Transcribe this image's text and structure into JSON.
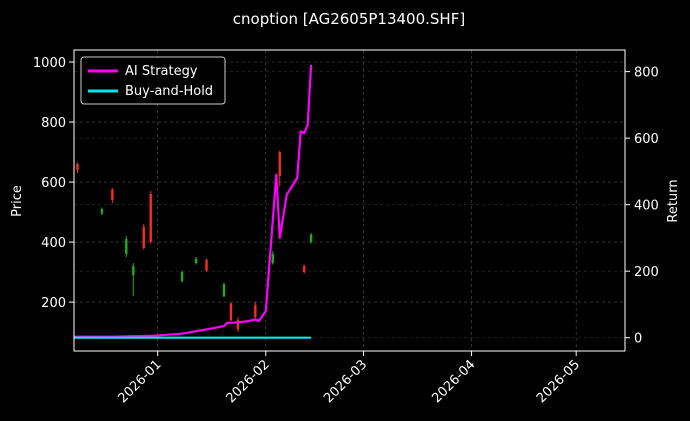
{
  "chart_data": {
    "type": "line",
    "title": "cnoption [AG2605P13400.SHF]",
    "xlabel": "",
    "ylabel_left": "Price",
    "ylabel_right": "Return",
    "x_range": [
      "2025-12-08",
      "2026-05-15"
    ],
    "x_ticks": [
      "2026-01",
      "2026-02",
      "2026-03",
      "2026-04",
      "2026-05"
    ],
    "ylim_left": [
      37,
      1040
    ],
    "ylim_right": [
      -40,
      865
    ],
    "y_ticks_left": [
      200,
      400,
      600,
      800,
      1000
    ],
    "y_ticks_right": [
      0,
      200,
      400,
      600,
      800
    ],
    "grid": true,
    "legend_position": "top-left",
    "colors": {
      "background": "#000000",
      "axes": "#ffffff",
      "grid": "#555555",
      "strategy": "#ff00ff",
      "buyhold": "#00e5ee",
      "candle_up": "#ff2a1a",
      "candle_down": "#22aa22"
    },
    "series": [
      {
        "name": "AI Strategy",
        "axis": "right",
        "x": [
          "2025-12-08",
          "2025-12-20",
          "2025-12-31",
          "2026-01-08",
          "2026-01-15",
          "2026-01-20",
          "2026-01-21",
          "2026-01-23",
          "2026-01-27",
          "2026-01-29",
          "2026-01-30",
          "2026-02-01",
          "2026-02-04",
          "2026-02-05",
          "2026-02-07",
          "2026-02-10",
          "2026-02-11",
          "2026-02-12",
          "2026-02-13",
          "2026-02-14"
        ],
        "values": [
          3,
          3,
          6,
          12,
          25,
          35,
          45,
          45,
          50,
          55,
          50,
          80,
          490,
          300,
          430,
          480,
          620,
          615,
          640,
          820
        ]
      },
      {
        "name": "Buy-and-Hold",
        "axis": "right",
        "x": [
          "2025-12-08",
          "2026-01-01",
          "2026-02-01",
          "2026-02-14"
        ],
        "values": [
          0,
          0,
          0,
          0
        ]
      }
    ],
    "candles": [
      {
        "x": "2025-12-09",
        "open": 640,
        "close": 660,
        "high": 665,
        "low": 630
      },
      {
        "x": "2025-12-16",
        "open": 510,
        "close": 495,
        "high": 515,
        "low": 490
      },
      {
        "x": "2025-12-19",
        "open": 540,
        "close": 575,
        "high": 580,
        "low": 530
      },
      {
        "x": "2025-12-23",
        "open": 410,
        "close": 360,
        "high": 420,
        "low": 350
      },
      {
        "x": "2025-12-25",
        "open": 320,
        "close": 290,
        "high": 330,
        "low": 220
      },
      {
        "x": "2025-12-28",
        "open": 380,
        "close": 450,
        "high": 460,
        "low": 375
      },
      {
        "x": "2025-12-30",
        "open": 400,
        "close": 560,
        "high": 570,
        "low": 395
      },
      {
        "x": "2026-01-08",
        "open": 300,
        "close": 270,
        "high": 305,
        "low": 265
      },
      {
        "x": "2026-01-12",
        "open": 345,
        "close": 330,
        "high": 350,
        "low": 325
      },
      {
        "x": "2026-01-15",
        "open": 305,
        "close": 340,
        "high": 345,
        "low": 300
      },
      {
        "x": "2026-01-20",
        "open": 260,
        "close": 220,
        "high": 265,
        "low": 215
      },
      {
        "x": "2026-01-22",
        "open": 140,
        "close": 195,
        "high": 200,
        "low": 135
      },
      {
        "x": "2026-01-24",
        "open": 110,
        "close": 140,
        "high": 150,
        "low": 100
      },
      {
        "x": "2026-01-29",
        "open": 150,
        "close": 190,
        "high": 200,
        "low": 145
      },
      {
        "x": "2026-02-03",
        "open": 360,
        "close": 330,
        "high": 370,
        "low": 325
      },
      {
        "x": "2026-02-05",
        "open": 620,
        "close": 700,
        "high": 705,
        "low": 585
      },
      {
        "x": "2026-02-12",
        "open": 300,
        "close": 320,
        "high": 325,
        "low": 295
      },
      {
        "x": "2026-02-14",
        "open": 425,
        "close": 400,
        "high": 430,
        "low": 395
      }
    ]
  }
}
